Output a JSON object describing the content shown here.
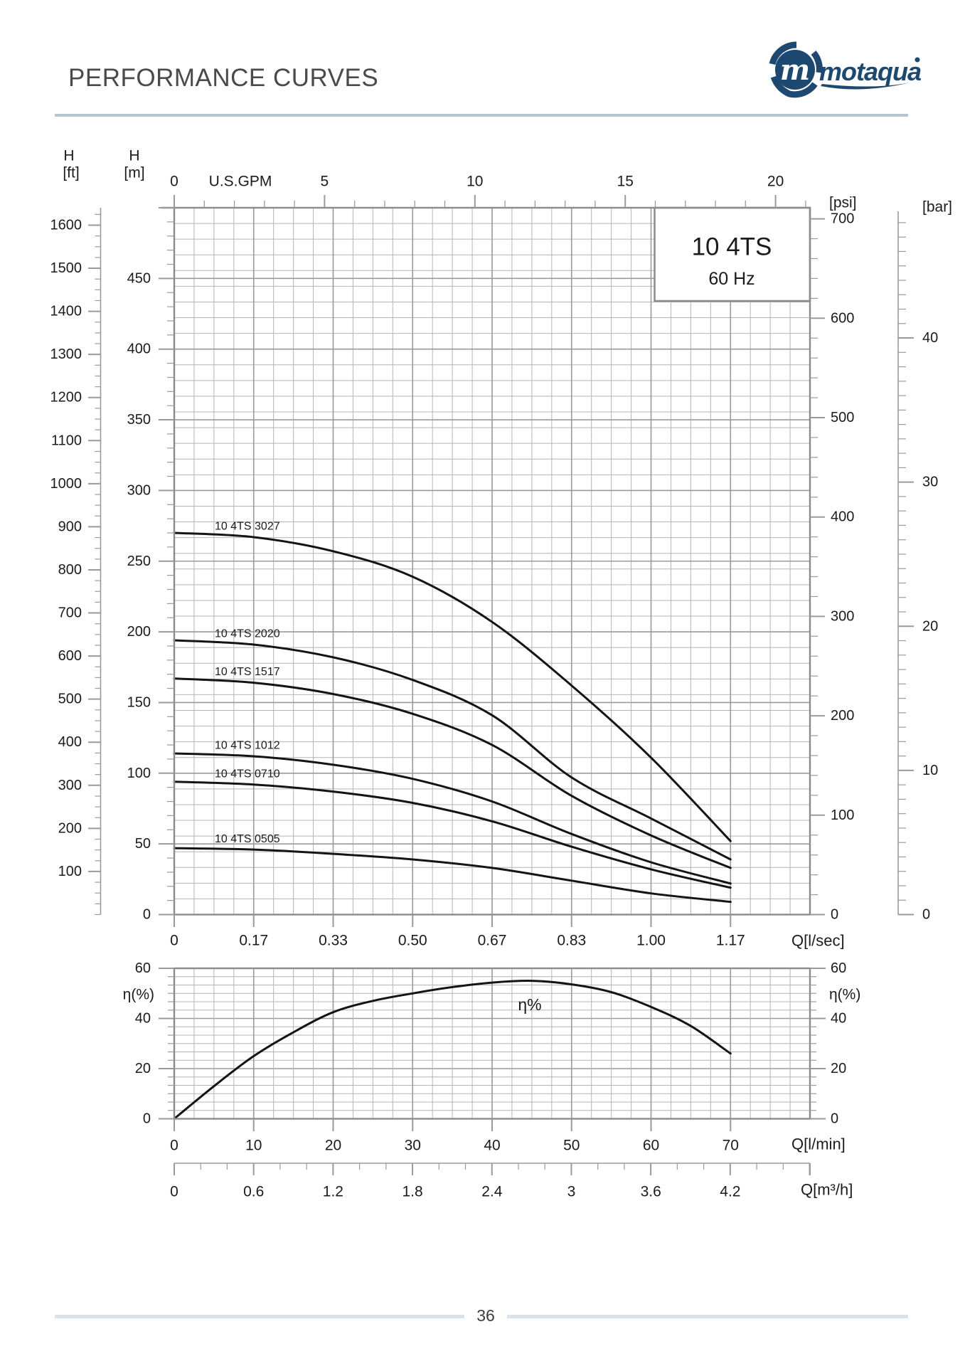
{
  "page": {
    "title": "PERFORMANCE CURVES",
    "page_number": "36"
  },
  "logo": {
    "brand": "motaqua",
    "monogram": "m",
    "color": "#1d486f"
  },
  "chart_data": [
    {
      "type": "line",
      "name": "head-capacity-curves",
      "box_label": {
        "model": "10 4TS",
        "frequency": "60 Hz"
      },
      "xlabel_units": [
        "U.S.GPM",
        "Q[l/sec]"
      ],
      "ylabel_units": [
        "H [ft]",
        "H [m]",
        "[psi]",
        "[bar]"
      ],
      "xlim_lmin": [
        0,
        80
      ],
      "ylim_m": [
        0,
        500
      ],
      "grid": "on",
      "axes": {
        "ft": {
          "title": "H",
          "unit": "[ft]",
          "ticks": [
            100,
            200,
            300,
            400,
            500,
            600,
            700,
            800,
            900,
            1000,
            1100,
            1200,
            1300,
            1400,
            1500,
            1600
          ]
        },
        "m": {
          "title": "H",
          "unit": "[m]",
          "ticks": [
            0,
            50,
            100,
            150,
            200,
            250,
            300,
            350,
            400,
            450
          ]
        },
        "gpm": {
          "title": "U.S.GPM",
          "ticks": [
            0,
            5,
            10,
            15,
            20
          ]
        },
        "psi": {
          "title": "[psi]",
          "ticks": [
            0,
            100,
            200,
            300,
            400,
            500,
            600,
            700
          ]
        },
        "bar": {
          "title": "[bar]",
          "ticks": [
            0,
            10,
            20,
            30,
            40
          ]
        },
        "lsec": {
          "title": "Q[l/sec]",
          "tick_labels": [
            "0",
            "0.17",
            "0.33",
            "0.50",
            "0.67",
            "0.83",
            "1.00",
            "1.17"
          ]
        }
      },
      "series": [
        {
          "name": "10 4TS 3027",
          "points": [
            [
              0,
              270
            ],
            [
              10,
              267
            ],
            [
              20,
              257
            ],
            [
              30,
              239
            ],
            [
              40,
              207
            ],
            [
              50,
              162
            ],
            [
              60,
              111
            ],
            [
              70,
              52
            ]
          ]
        },
        {
          "name": "10 4TS 2020",
          "points": [
            [
              0,
              194
            ],
            [
              10,
              191
            ],
            [
              20,
              182
            ],
            [
              30,
              166
            ],
            [
              40,
              141
            ],
            [
              50,
              97
            ],
            [
              60,
              68
            ],
            [
              70,
              39
            ]
          ]
        },
        {
          "name": "10 4TS 1517",
          "points": [
            [
              0,
              167
            ],
            [
              10,
              164
            ],
            [
              20,
              156
            ],
            [
              30,
              142
            ],
            [
              40,
              120
            ],
            [
              50,
              84
            ],
            [
              60,
              56
            ],
            [
              70,
              33
            ]
          ]
        },
        {
          "name": "10 4TS 1012",
          "points": [
            [
              0,
              114
            ],
            [
              10,
              112
            ],
            [
              20,
              106
            ],
            [
              30,
              96
            ],
            [
              40,
              80
            ],
            [
              50,
              57
            ],
            [
              60,
              37
            ],
            [
              70,
              22
            ]
          ]
        },
        {
          "name": "10 4TS 0710",
          "points": [
            [
              0,
              94
            ],
            [
              10,
              92
            ],
            [
              20,
              87
            ],
            [
              30,
              79
            ],
            [
              40,
              66
            ],
            [
              50,
              48
            ],
            [
              60,
              32
            ],
            [
              70,
              19
            ]
          ]
        },
        {
          "name": "10 4TS 0505",
          "points": [
            [
              0,
              47
            ],
            [
              10,
              46
            ],
            [
              20,
              43
            ],
            [
              30,
              39
            ],
            [
              40,
              33
            ],
            [
              50,
              24
            ],
            [
              60,
              15
            ],
            [
              70,
              9
            ]
          ]
        }
      ]
    },
    {
      "type": "line",
      "name": "efficiency-curve",
      "curve_label": "η%",
      "ylim_pct": [
        0,
        60
      ],
      "grid": "on",
      "axes": {
        "eta_left": {
          "title": "η(%)",
          "ticks": [
            0,
            20,
            40,
            60
          ]
        },
        "eta_right": {
          "title": "η(%)",
          "ticks": [
            0,
            20,
            40,
            60
          ]
        },
        "lmin": {
          "title": "Q[l/min]",
          "ticks": [
            0,
            10,
            20,
            30,
            40,
            50,
            60,
            70
          ]
        },
        "m3h": {
          "title": "Q[m³/h]",
          "tick_labels": [
            "0",
            "0.6",
            "1.2",
            "1.8",
            "2.4",
            "3",
            "3.6",
            "4.2"
          ]
        }
      },
      "points": [
        [
          0,
          0
        ],
        [
          5,
          13
        ],
        [
          10,
          25
        ],
        [
          15,
          34.5
        ],
        [
          20,
          42.5
        ],
        [
          25,
          47
        ],
        [
          30,
          50
        ],
        [
          35,
          52.5
        ],
        [
          40,
          54.3
        ],
        [
          45,
          55
        ],
        [
          50,
          53.6
        ],
        [
          55,
          50.5
        ],
        [
          60,
          44.6
        ],
        [
          65,
          37
        ],
        [
          70,
          26
        ]
      ]
    }
  ]
}
